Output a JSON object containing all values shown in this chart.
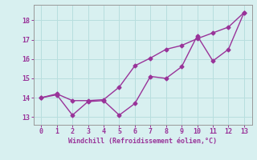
{
  "xlabel": "Windchill (Refroidissement éolien,°C)",
  "x": [
    0,
    1,
    2,
    3,
    4,
    5,
    6,
    7,
    8,
    9,
    10,
    11,
    12,
    13
  ],
  "line1": [
    14.0,
    14.15,
    13.1,
    13.8,
    13.85,
    13.1,
    13.7,
    15.1,
    15.0,
    15.6,
    17.2,
    15.9,
    16.5,
    18.4
  ],
  "line2": [
    14.0,
    14.2,
    13.85,
    13.85,
    13.9,
    14.55,
    15.65,
    16.05,
    16.5,
    16.7,
    17.05,
    17.35,
    17.65,
    18.4
  ],
  "line_color": "#993399",
  "bg_color": "#d8f0f0",
  "grid_color": "#b8dede",
  "axis_color": "#999999",
  "ylim": [
    12.6,
    18.8
  ],
  "xlim": [
    -0.5,
    13.5
  ],
  "yticks": [
    13,
    14,
    15,
    16,
    17,
    18
  ],
  "xticks": [
    0,
    1,
    2,
    3,
    4,
    5,
    6,
    7,
    8,
    9,
    10,
    11,
    12,
    13
  ],
  "tick_color": "#993399",
  "label_color": "#993399",
  "marker": "D",
  "marker_size": 2.5,
  "line_width": 1.0
}
